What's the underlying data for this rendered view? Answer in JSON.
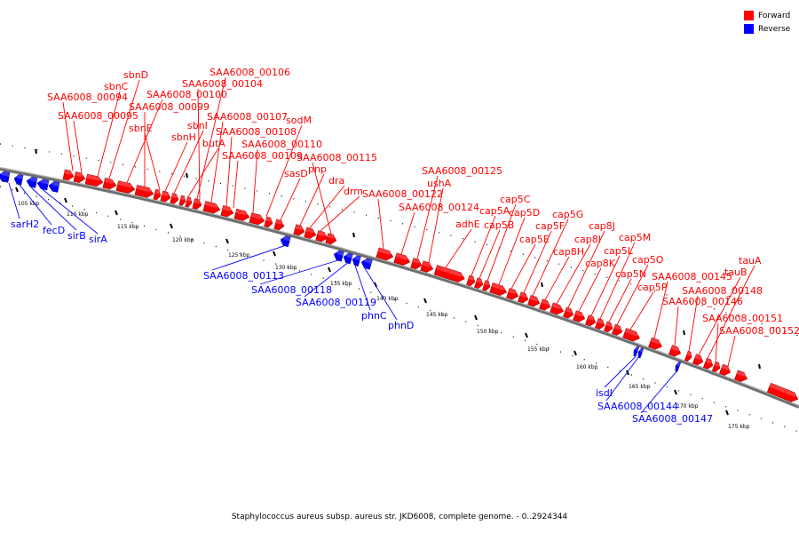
{
  "caption": "Staphylococcus aureus subsp. aureus str. JKD6008, complete genome. - 0..2924344",
  "legend": [
    {
      "label": "Forward",
      "color": "#ff0000"
    },
    {
      "label": "Reverse",
      "color": "#0000ff"
    }
  ],
  "colors": {
    "forward": "#ff0000",
    "reverse": "#0000ff",
    "axis": "#808080"
  },
  "tick_labels": [
    "105 kbp",
    "110 kbp",
    "115 kbp",
    "120 kbp",
    "125 kbp",
    "130 kbp",
    "135 kbp",
    "140 kbp",
    "145 kbp",
    "150 kbp",
    "155 kbp",
    "160 kbp",
    "165 kbp",
    "170 kbp",
    "175 kbp"
  ],
  "forward_labels": [
    "SAA6008_00094",
    "SAA6008_00095",
    "sbnC",
    "sbnD",
    "SAA6008_00100",
    "SAA6008_00099",
    "sbnE",
    "sbnH",
    "sbnI",
    "butA",
    "SAA6008_00106",
    "SAA6008_00104",
    "SAA6008_00107",
    "SAA6008_00108",
    "SAA6008_00109",
    "SAA6008_00110",
    "sodM",
    "sasD",
    "pnp",
    "dra",
    "drm",
    "SAA6008_00115",
    "SAA6008_00122",
    "SAA6008_00124",
    "SAA6008_00125",
    "ushA",
    "adhE",
    "cap5A",
    "cap5B",
    "cap5C",
    "cap5D",
    "cap5E",
    "cap5F",
    "cap5G",
    "cap8H",
    "cap8I",
    "cap8J",
    "cap8K",
    "cap5L",
    "cap5M",
    "cap5N",
    "cap5O",
    "cap5P",
    "SAA6008_00145",
    "SAA6008_00146",
    "SAA6008_00148",
    "tauB",
    "tauA",
    "SAA6008_00151",
    "SAA6008_00152"
  ],
  "reverse_labels": [
    "sarH2",
    "fecD",
    "sirB",
    "sirA",
    "SAA6008_00113",
    "SAA6008_00118",
    "SAA6008_00119",
    "phnC",
    "phnD",
    "isdI",
    "SAA6008_00144",
    "SAA6008_00147"
  ]
}
